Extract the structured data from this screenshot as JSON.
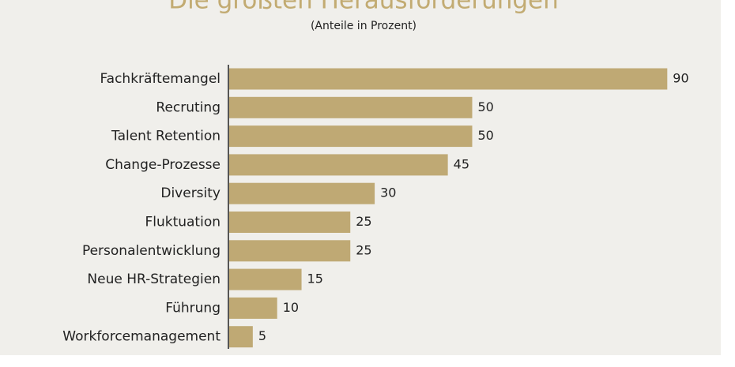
{
  "chart_data": {
    "type": "bar",
    "orientation": "horizontal",
    "title": "Die größten Herausforderungen",
    "subtitle": "(Anteile in Prozent)",
    "categories": [
      "Fachkräftemangel",
      "Recruting",
      "Talent Retention",
      "Change-Prozesse",
      "Diversity",
      "Fluktuation",
      "Personalentwicklung",
      "Neue HR-Strategien",
      "Führung",
      "Workforcemanagement"
    ],
    "values": [
      90,
      50,
      50,
      45,
      30,
      25,
      25,
      15,
      10,
      5
    ],
    "color": "#bfa974"
  }
}
